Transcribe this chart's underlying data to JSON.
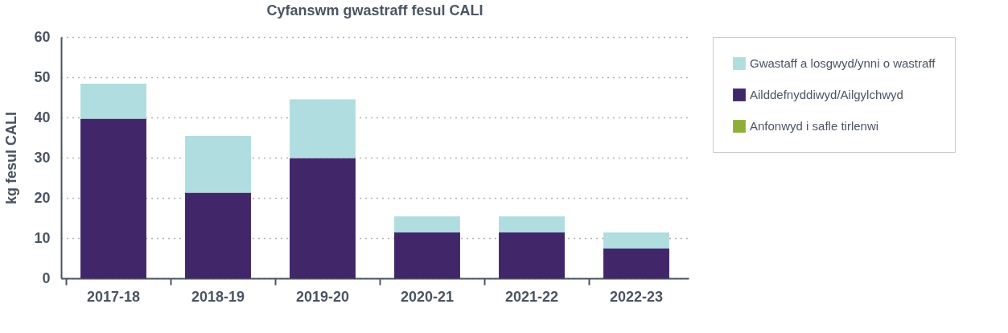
{
  "chart_data": {
    "type": "bar",
    "title": "Cyfanswm gwastraff fesul CALI",
    "ylabel": "kg fesul CALI",
    "categories": [
      "2017-18",
      "2018-19",
      "2019-20",
      "2020-21",
      "2021-22",
      "2022-23"
    ],
    "stacked": true,
    "series": [
      {
        "name": "Anfonwyd i safle tirlenwi",
        "color": "#8fad3a",
        "values": [
          0,
          0,
          0,
          0,
          0,
          0
        ]
      },
      {
        "name": "Ailddefnyddiwyd/Ailgylchwyd",
        "color": "#42266a",
        "values": [
          39.7,
          21.3,
          29.9,
          11.4,
          11.4,
          7.4
        ]
      },
      {
        "name": "Gwastaff a losgwyd/ynni o wastraff",
        "color": "#b0dde0",
        "values": [
          8.7,
          14.1,
          14.6,
          4.0,
          4.0,
          4.0
        ]
      }
    ],
    "ylim": [
      0,
      60
    ],
    "yticks": [
      0,
      10,
      20,
      30,
      40,
      50,
      60
    ],
    "grid": "y",
    "legend": "right"
  }
}
